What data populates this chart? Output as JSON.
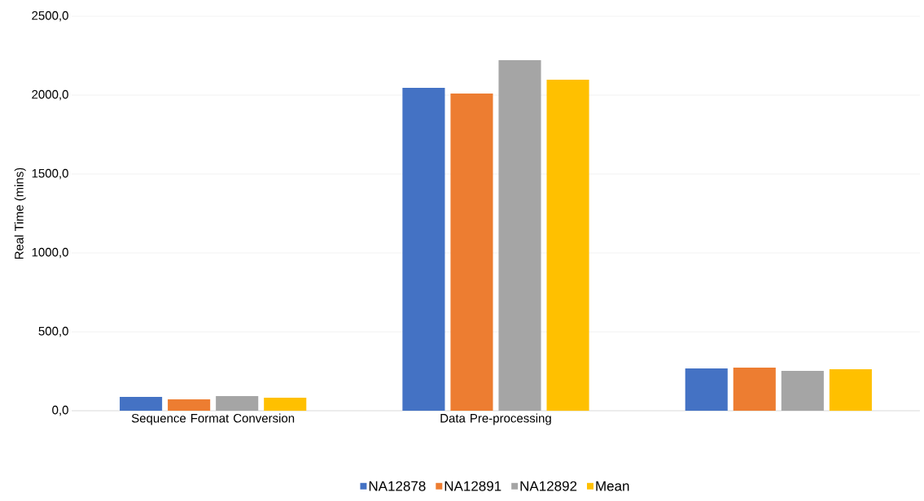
{
  "chart_data": {
    "type": "bar",
    "ylabel": "Real Time (mins)",
    "categories": [
      "Sequence Format Conversion",
      "Data Pre-processing",
      null
    ],
    "series": [
      {
        "name": "NA12878",
        "color": "#4472c4",
        "values": [
          88,
          2046,
          268
        ]
      },
      {
        "name": "NA12891",
        "color": "#ed7d31",
        "values": [
          72,
          2010,
          273
        ]
      },
      {
        "name": "NA12892",
        "color": "#a5a5a5",
        "values": [
          93,
          2222,
          253
        ]
      },
      {
        "name": "Mean",
        "color": "#ffc000",
        "values": [
          82,
          2098,
          263
        ]
      }
    ],
    "ylim": [
      0,
      2500
    ],
    "yticks": [
      {
        "value": 0,
        "label": "0,0"
      },
      {
        "value": 500,
        "label": "500,0"
      },
      {
        "value": 1000,
        "label": "1000,0"
      },
      {
        "value": 1500,
        "label": "1500,0"
      },
      {
        "value": 2000,
        "label": "2000,0"
      },
      {
        "value": 2500,
        "label": "2500,0"
      }
    ],
    "grid": "y",
    "legend": "bottom"
  }
}
